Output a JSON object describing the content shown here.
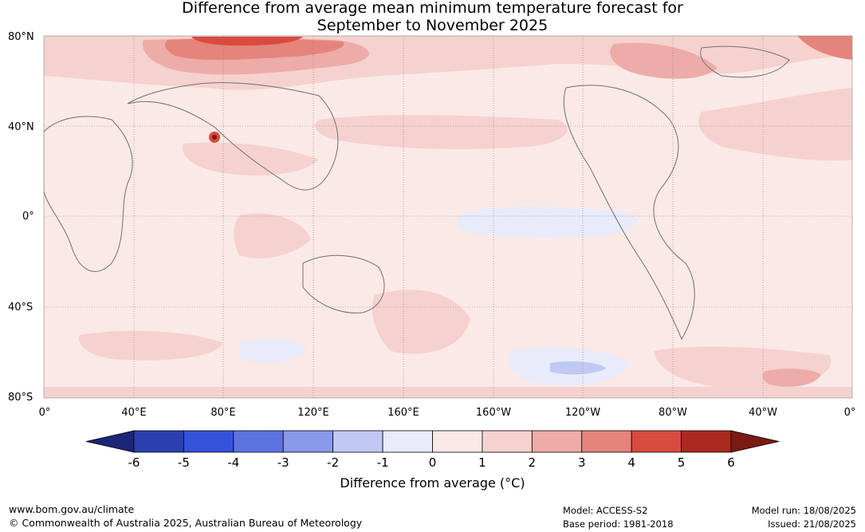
{
  "title_line1": "Difference from average mean minimum temperature forecast for",
  "title_line2": "September to November 2025",
  "lat_labels": [
    "80°N",
    "40°N",
    "0°",
    "40°S",
    "80°S"
  ],
  "lon_labels": [
    "0°",
    "40°E",
    "80°E",
    "120°E",
    "160°E",
    "160°W",
    "120°W",
    "80°W",
    "40°W",
    "0°"
  ],
  "legend": {
    "title": "Difference from average (°C)",
    "ticks": [
      "-6",
      "-5",
      "-4",
      "-3",
      "-2",
      "-1",
      "0",
      "1",
      "2",
      "3",
      "4",
      "5",
      "6"
    ],
    "colors": [
      "#1b2678",
      "#2b3fb0",
      "#3452dc",
      "#5c73e2",
      "#8898ea",
      "#c0c9f2",
      "#e8ebfa",
      "#fbe9e7",
      "#f5d2cf",
      "#edaca7",
      "#e5847c",
      "#d84b3f",
      "#aa2a20",
      "#7a1a14"
    ]
  },
  "footer": {
    "url": "www.bom.gov.au/climate",
    "copyright": "© Commonwealth of Australia 2025, Australian Bureau of Meteorology",
    "model": "Model: ACCESS-S2",
    "base_period": "Base period: 1981-2018",
    "model_run": "Model run: 18/08/2025",
    "issued": "Issued: 21/08/2025"
  }
}
